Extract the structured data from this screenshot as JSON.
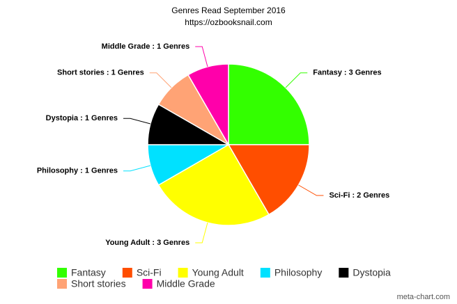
{
  "chart_data": {
    "type": "pie",
    "title": "Genres Read September 2016",
    "subtitle": "https://ozbooksnail.com",
    "categories": [
      "Fantasy",
      "Sci-Fi",
      "Young Adult",
      "Philosophy",
      "Dystopia",
      "Short stories",
      "Middle Grade"
    ],
    "values": [
      3,
      2,
      3,
      1,
      1,
      1,
      1
    ],
    "value_labels": [
      "Fantasy : 3 Genres",
      "Sci-Fi : 2 Genres",
      "Young Adult : 3 Genres",
      "Philosophy : 1 Genres",
      "Dystopia : 1 Genres",
      "Short stories : 1 Genres",
      "Middle Grade : 1 Genres"
    ],
    "colors": [
      "#33ff00",
      "#ff4e00",
      "#ffff00",
      "#00e1ff",
      "#000000",
      "#ffa375",
      "#ff00aa"
    ],
    "legend": "bottom",
    "credit": "meta-chart.com"
  }
}
